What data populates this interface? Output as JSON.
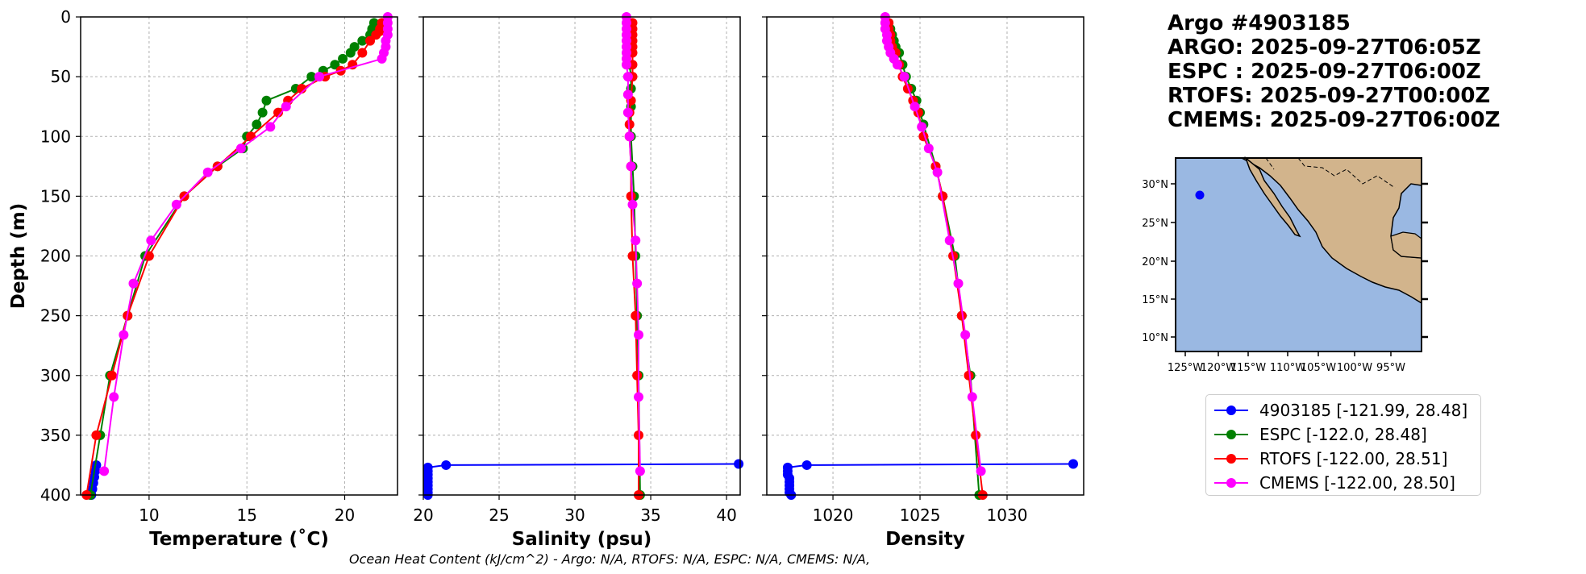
{
  "title_lines": [
    "Argo #4903185",
    "ARGO: 2025-09-27T06:05Z",
    "ESPC : 2025-09-27T06:00Z",
    "RTOFS: 2025-09-27T00:00Z",
    "CMEMS: 2025-09-27T06:00Z"
  ],
  "footer": "Ocean Heat Content (kJ/cm^2) - Argo: N/A,  RTOFS: N/A,  ESPC: N/A,  CMEMS: N/A,",
  "colors": {
    "argo": "#0000ff",
    "espc": "#008000",
    "rtofs": "#ff0000",
    "cmems": "#ff00ff",
    "ocean": "#9ab8e2",
    "land": "#d2b48c"
  },
  "legend": [
    {
      "label": "4903185 [-121.99, 28.48]",
      "color": "#0000ff"
    },
    {
      "label": "ESPC [-122.0, 28.48]",
      "color": "#008000"
    },
    {
      "label": "RTOFS [-122.00, 28.51]",
      "color": "#ff0000"
    },
    {
      "label": "CMEMS [-122.00, 28.50]",
      "color": "#ff00ff"
    }
  ],
  "map": {
    "lon_ticks": [
      "125°W",
      "120°W",
      "115°W",
      "110°W",
      "105°W",
      "100°W",
      "95°W"
    ],
    "lat_ticks": [
      "30°N",
      "25°N",
      "20°N",
      "15°N",
      "10°N"
    ],
    "float_position": [
      -121.99,
      28.48
    ]
  },
  "chart_data": [
    {
      "type": "line",
      "xlabel": "Temperature (˚C)",
      "ylabel": "Depth (m)",
      "xlim": [
        6.5,
        22.7
      ],
      "ylim": [
        400,
        0
      ],
      "xticks": [
        10,
        15,
        20
      ],
      "yticks": [
        0,
        50,
        100,
        150,
        200,
        250,
        300,
        350,
        400
      ],
      "grid": true,
      "series": [
        {
          "name": "4903185",
          "color": "#0000ff",
          "x": [
            7.3,
            7.25,
            7.2,
            7.15,
            7.1,
            7.05
          ],
          "y": [
            375,
            380,
            385,
            390,
            395,
            400
          ]
        },
        {
          "name": "ESPC",
          "color": "#008000",
          "x": [
            21.5,
            21.5,
            21.4,
            21.4,
            21.3,
            20.9,
            20.5,
            20.3,
            19.9,
            19.5,
            18.9,
            18.3,
            17.5,
            16.0,
            15.8,
            15.5,
            15.0,
            14.8,
            13.5,
            11.8,
            9.8,
            8.9,
            8.0,
            7.5,
            7.0
          ],
          "y": [
            5,
            8,
            10,
            12,
            15,
            20,
            25,
            30,
            35,
            40,
            45,
            50,
            60,
            70,
            80,
            90,
            100,
            110,
            125,
            150,
            200,
            250,
            300,
            350,
            400
          ]
        },
        {
          "name": "RTOFS",
          "color": "#ff0000",
          "x": [
            21.9,
            21.9,
            21.8,
            21.8,
            21.6,
            21.3,
            20.9,
            20.4,
            19.8,
            19.0,
            17.8,
            17.1,
            16.6,
            15.2,
            13.5,
            11.8,
            10.0,
            8.9,
            8.1,
            7.3,
            6.8
          ],
          "y": [
            5,
            8,
            10,
            12,
            15,
            20,
            30,
            40,
            45,
            50,
            60,
            70,
            80,
            100,
            125,
            150,
            200,
            250,
            300,
            350,
            400
          ]
        },
        {
          "name": "CMEMS",
          "color": "#ff00ff",
          "x": [
            22.2,
            22.2,
            22.2,
            22.2,
            22.1,
            22.1,
            22.0,
            21.9,
            18.7,
            17.0,
            16.2,
            14.7,
            13.0,
            11.4,
            10.1,
            9.2,
            8.7,
            8.2,
            7.7
          ],
          "y": [
            0,
            5,
            10,
            15,
            20,
            25,
            30,
            35,
            50,
            75,
            92,
            110,
            130,
            157,
            187,
            223,
            266,
            318,
            380
          ]
        }
      ]
    },
    {
      "type": "line",
      "xlabel": "Salinity (psu)",
      "ylabel": "",
      "xlim": [
        20,
        40.9
      ],
      "ylim": [
        400,
        0
      ],
      "xticks": [
        20,
        25,
        30,
        35,
        40
      ],
      "yticks": [
        0,
        50,
        100,
        150,
        200,
        250,
        300,
        350,
        400
      ],
      "grid": true,
      "series": [
        {
          "name": "4903185",
          "color": "#0000ff",
          "x": [
            40.8,
            21.5,
            20.3,
            20.3,
            20.3,
            20.3,
            20.3,
            20.3,
            20.3,
            20.3,
            20.3
          ],
          "y": [
            374,
            375,
            377,
            380,
            383,
            386,
            389,
            392,
            395,
            398,
            400
          ]
        },
        {
          "name": "ESPC",
          "color": "#008000",
          "x": [
            33.6,
            33.6,
            33.6,
            33.6,
            33.6,
            33.6,
            33.7,
            33.7,
            33.7,
            33.7,
            33.8,
            33.9,
            34.0,
            34.1,
            34.2,
            34.3
          ],
          "y": [
            5,
            10,
            15,
            20,
            30,
            40,
            50,
            60,
            75,
            100,
            125,
            150,
            200,
            250,
            300,
            400
          ]
        },
        {
          "name": "RTOFS",
          "color": "#ff0000",
          "x": [
            33.8,
            33.8,
            33.8,
            33.8,
            33.8,
            33.8,
            33.8,
            33.8,
            33.7,
            33.6,
            33.6,
            33.6,
            33.7,
            33.7,
            33.8,
            34.0,
            34.1,
            34.2,
            34.2
          ],
          "y": [
            5,
            10,
            15,
            20,
            25,
            30,
            40,
            50,
            70,
            80,
            90,
            100,
            125,
            150,
            200,
            250,
            300,
            350,
            400
          ]
        },
        {
          "name": "CMEMS",
          "color": "#ff00ff",
          "x": [
            33.4,
            33.4,
            33.4,
            33.4,
            33.4,
            33.4,
            33.4,
            33.4,
            33.4,
            33.5,
            33.5,
            33.5,
            33.6,
            33.7,
            33.8,
            34.0,
            34.1,
            34.2,
            34.2,
            34.3
          ],
          "y": [
            0,
            5,
            10,
            15,
            20,
            25,
            30,
            35,
            40,
            50,
            65,
            80,
            100,
            125,
            157,
            187,
            223,
            266,
            318,
            380
          ]
        }
      ]
    },
    {
      "type": "line",
      "xlabel": "Density",
      "ylabel": "",
      "xlim": [
        1016.2,
        1034.4
      ],
      "ylim": [
        400,
        0
      ],
      "xticks": [
        1020,
        1025,
        1030
      ],
      "yticks": [
        0,
        50,
        100,
        150,
        200,
        250,
        300,
        350,
        400
      ],
      "grid": true,
      "series": [
        {
          "name": "4903185",
          "color": "#0000ff",
          "x": [
            1033.8,
            1018.5,
            1017.4,
            1017.4,
            1017.4,
            1017.5,
            1017.5,
            1017.5,
            1017.5,
            1017.5,
            1017.6
          ],
          "y": [
            374,
            375,
            377,
            380,
            383,
            386,
            389,
            392,
            395,
            398,
            400
          ]
        },
        {
          "name": "ESPC",
          "color": "#008000",
          "x": [
            1023.2,
            1023.3,
            1023.4,
            1023.5,
            1023.6,
            1023.8,
            1024.0,
            1024.2,
            1024.5,
            1024.8,
            1025.0,
            1025.2,
            1025.9,
            1026.3,
            1027.0,
            1027.4,
            1027.9,
            1028.4
          ],
          "y": [
            5,
            10,
            15,
            20,
            25,
            30,
            40,
            50,
            60,
            70,
            80,
            90,
            125,
            150,
            200,
            250,
            300,
            400
          ]
        },
        {
          "name": "RTOFS",
          "color": "#ff0000",
          "x": [
            1023.2,
            1023.2,
            1023.3,
            1023.3,
            1023.4,
            1023.6,
            1023.8,
            1024.0,
            1024.3,
            1024.6,
            1024.9,
            1025.2,
            1025.9,
            1026.3,
            1026.9,
            1027.4,
            1027.8,
            1028.2,
            1028.6
          ],
          "y": [
            5,
            10,
            15,
            20,
            25,
            30,
            40,
            50,
            60,
            70,
            80,
            100,
            125,
            150,
            200,
            250,
            300,
            350,
            400
          ]
        },
        {
          "name": "CMEMS",
          "color": "#ff00ff",
          "x": [
            1023.0,
            1023.0,
            1023.0,
            1023.1,
            1023.1,
            1023.2,
            1023.3,
            1023.5,
            1023.7,
            1024.1,
            1024.7,
            1025.1,
            1025.5,
            1026.0,
            1026.7,
            1027.2,
            1027.6,
            1028.0,
            1028.5
          ],
          "y": [
            0,
            5,
            10,
            15,
            20,
            25,
            30,
            35,
            40,
            50,
            75,
            92,
            110,
            130,
            187,
            223,
            266,
            318,
            380
          ]
        }
      ]
    }
  ]
}
